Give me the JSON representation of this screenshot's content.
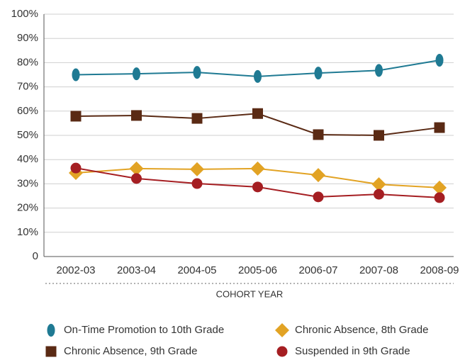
{
  "chart_data": {
    "type": "line",
    "x_label": "COHORT YEAR",
    "categories": [
      "2002-03",
      "2003-04",
      "2004-05",
      "2005-06",
      "2006-07",
      "2007-08",
      "2008-09"
    ],
    "series": [
      {
        "name": "On-Time Promotion to 10th Grade",
        "color": "#1f7a93",
        "marker": "ellipse",
        "values": [
          75,
          75.4,
          76,
          74.3,
          75.7,
          76.8,
          81
        ]
      },
      {
        "name": "Chronic Absence, 8th Grade",
        "color": "#e2a324",
        "marker": "diamond",
        "values": [
          34.5,
          36.3,
          36,
          36.3,
          33.6,
          29.8,
          28.4
        ]
      },
      {
        "name": "Chronic Absence, 9th Grade",
        "color": "#5a2a14",
        "marker": "square",
        "values": [
          57.9,
          58.2,
          57,
          59,
          50.3,
          50,
          53.2
        ]
      },
      {
        "name": "Suspended in 9th Grade",
        "color": "#a51e22",
        "marker": "circle",
        "values": [
          36.5,
          32.2,
          30.1,
          28.7,
          24.6,
          25.7,
          24.3
        ]
      }
    ],
    "ylim": [
      0,
      100
    ],
    "yticks": [
      0,
      {
        "value": 10,
        "label": "10%"
      },
      {
        "value": 20,
        "label": "20%"
      },
      {
        "value": 30,
        "label": "30%"
      },
      {
        "value": 40,
        "label": "40%"
      },
      {
        "value": 50,
        "label": "50%"
      },
      {
        "value": 60,
        "label": "60%"
      },
      {
        "value": 70,
        "label": "70%"
      },
      {
        "value": 80,
        "label": "80%"
      },
      {
        "value": 90,
        "label": "90%"
      },
      {
        "value": 100,
        "label": "100%"
      }
    ],
    "grid": true
  }
}
